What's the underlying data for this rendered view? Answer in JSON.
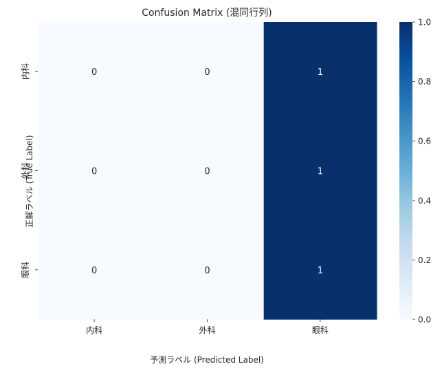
{
  "chart_data": {
    "type": "heatmap",
    "title": "Confusion Matrix (混同行列)",
    "xlabel": "予測ラベル (Predicted Label)",
    "ylabel": "正解ラベル (True Label)",
    "x_categories": [
      "内科",
      "外科",
      "眼科"
    ],
    "y_categories": [
      "内科",
      "外科",
      "眼科"
    ],
    "values": [
      [
        0,
        0,
        1
      ],
      [
        0,
        0,
        1
      ],
      [
        0,
        0,
        1
      ]
    ],
    "colormap": "Blues",
    "color_low": "#f7fbff",
    "color_high": "#08306b",
    "colorbar": {
      "range": [
        0.0,
        1.0
      ],
      "ticks": [
        "0.0",
        "0.2",
        "0.4",
        "0.6",
        "0.8",
        "1.0"
      ]
    }
  }
}
